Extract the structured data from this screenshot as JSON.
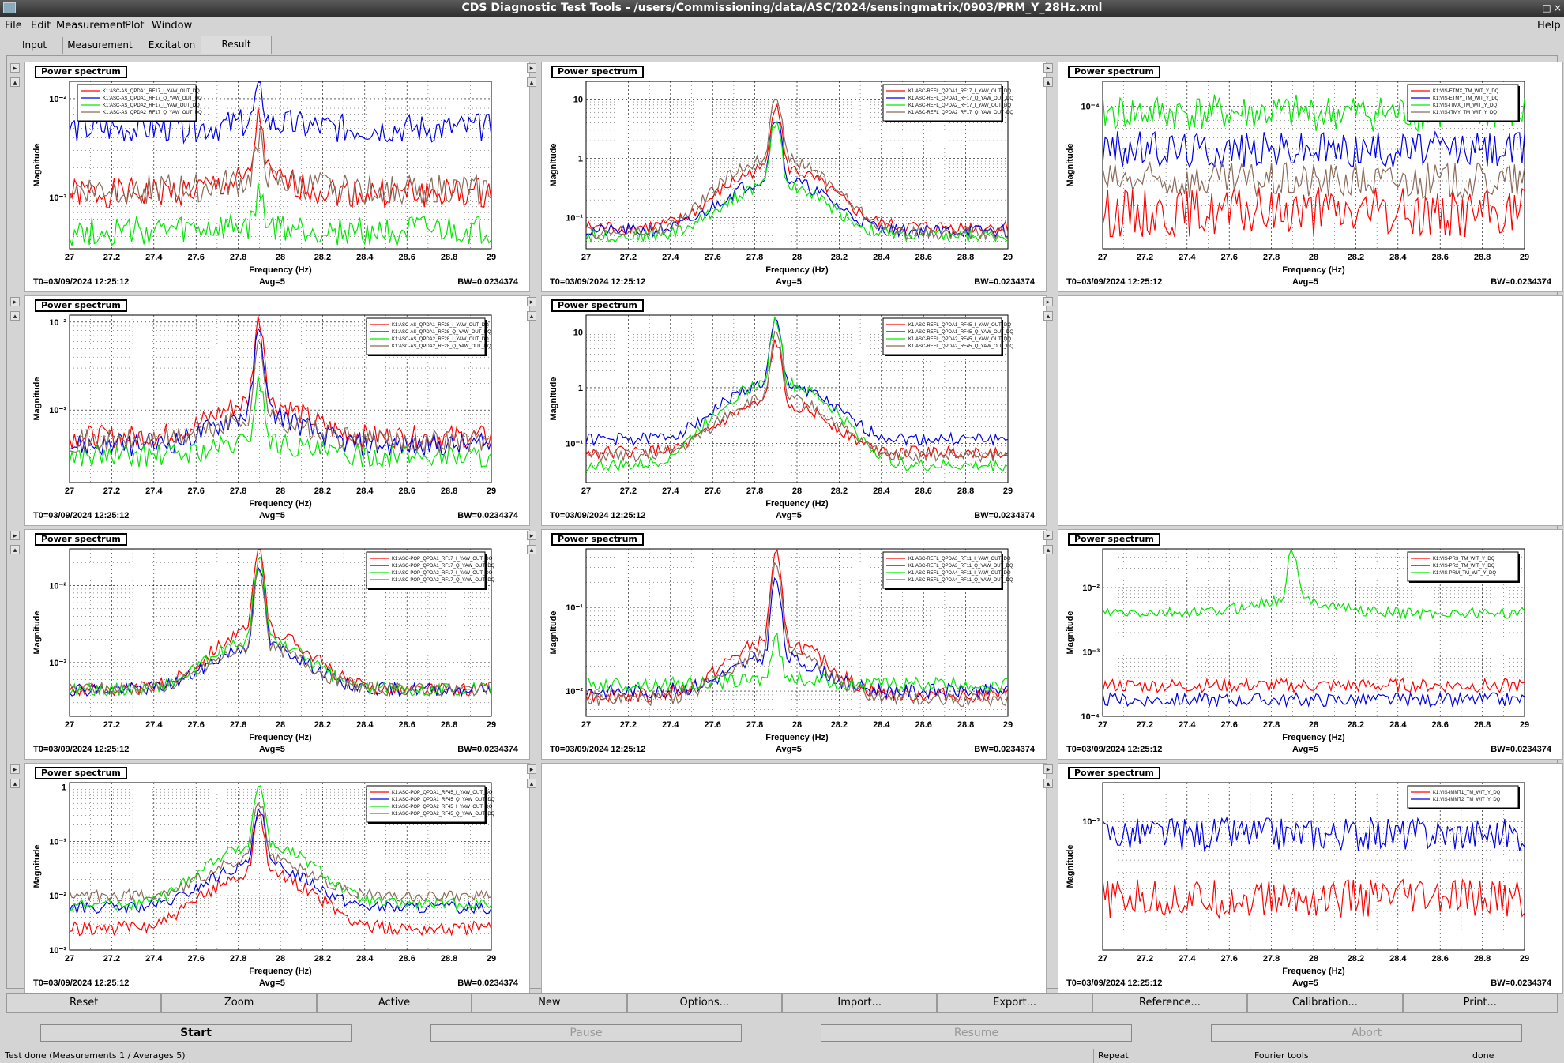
{
  "window": {
    "title": "CDS Diagnostic Test Tools - /users/Commissioning/data/ASC/2024/sensingmatrix/0903/PRM_Y_28Hz.xml"
  },
  "menu": {
    "file": "File",
    "edit": "Edit",
    "measurement": "Measurement",
    "plot": "Plot",
    "window": "Window",
    "help": "Help"
  },
  "tabs": [
    {
      "label": "Input"
    },
    {
      "label": "Measurement"
    },
    {
      "label": "Excitation"
    },
    {
      "label": "Result",
      "active": true
    }
  ],
  "common": {
    "panel_label": "Power spectrum",
    "xlabel": "Frequency (Hz)",
    "ylabel": "Magnitude",
    "t0": "T0=03/09/2024 12:25:12",
    "avg": "Avg=5",
    "bw": "BW=0.0234374",
    "xticks": [
      "27",
      "27.2",
      "27.4",
      "27.6",
      "27.8",
      "28",
      "28.2",
      "28.4",
      "28.6",
      "28.8",
      "29"
    ],
    "xlim": [
      27,
      29
    ]
  },
  "colors": {
    "red": "#ff0000",
    "blue": "#0000e6",
    "green": "#00e600",
    "brown": "#8b6b5a",
    "panel_bg": "#ffffff",
    "window_bg": "#d4d4d4"
  },
  "chart_data": [
    {
      "type": "line",
      "panel": "row1-col1",
      "scale": "log",
      "ylim": [
        0.0003,
        0.015
      ],
      "yticks": [
        {
          "value": 0.01,
          "label": "10⁻²"
        },
        {
          "value": 0.001,
          "label": "10⁻³"
        }
      ],
      "legend_position": "top-left",
      "series": [
        {
          "name": "K1:ASC-AS_QPDA1_RF17_I_YAW_OUT_DQ",
          "color": "red",
          "base": 0.0011,
          "peak": 0.006,
          "noise": 0.35
        },
        {
          "name": "K1:ASC-AS_QPDA1_RF17_Q_YAW_OUT_DQ",
          "color": "blue",
          "base": 0.005,
          "peak": 0.012,
          "noise": 0.35
        },
        {
          "name": "K1:ASC-AS_QPDA2_RF17_I_YAW_OUT_DQ",
          "color": "green",
          "base": 0.00045,
          "peak": 0.001,
          "noise": 0.35
        },
        {
          "name": "K1:ASC-AS_QPDA2_RF17_Q_YAW_OUT_DQ",
          "color": "brown",
          "base": 0.0012,
          "peak": 0.004,
          "noise": 0.35
        }
      ]
    },
    {
      "type": "line",
      "panel": "row1-col2",
      "scale": "log",
      "ylim": [
        0.03,
        20
      ],
      "yticks": [
        {
          "value": 10,
          "label": "10"
        },
        {
          "value": 1,
          "label": "1"
        },
        {
          "value": 0.1,
          "label": "10⁻¹"
        }
      ],
      "legend_position": "top-right",
      "series": [
        {
          "name": "K1:ASC-REFL_QPDA1_RF17_I_YAW_OUT_DQ",
          "color": "red",
          "base": 0.07,
          "peak": 8,
          "noise": 0.25
        },
        {
          "name": "K1:ASC-REFL_QPDA1_RF17_Q_YAW_OUT_DQ",
          "color": "blue",
          "base": 0.06,
          "peak": 5,
          "noise": 0.25
        },
        {
          "name": "K1:ASC-REFL_QPDA2_RF17_I_YAW_OUT_DQ",
          "color": "green",
          "base": 0.05,
          "peak": 4,
          "noise": 0.25
        },
        {
          "name": "K1:ASC-REFL_QPDA2_RF17_Q_YAW_OUT_DQ",
          "color": "brown",
          "base": 0.055,
          "peak": 12,
          "noise": 0.25
        }
      ]
    },
    {
      "type": "line",
      "panel": "row1-col3",
      "scale": "log",
      "ylim": [
        1e-05,
        0.00015
      ],
      "yticks": [
        {
          "value": 0.0001,
          "label": "10⁻⁴"
        }
      ],
      "legend_position": "top-right",
      "series": [
        {
          "name": "K1:VIS-ETMX_TM_WIT_Y_DQ",
          "color": "red",
          "base": 1.8e-05,
          "peak": 2e-05,
          "noise": 0.4
        },
        {
          "name": "K1:VIS-ETMY_TM_WIT_Y_DQ",
          "color": "blue",
          "base": 5e-05,
          "peak": 5e-05,
          "noise": 0.3
        },
        {
          "name": "K1:VIS-ITMX_TM_WIT_Y_DQ",
          "color": "green",
          "base": 9e-05,
          "peak": 9e-05,
          "noise": 0.3
        },
        {
          "name": "K1:VIS-ITMY_TM_WIT_Y_DQ",
          "color": "brown",
          "base": 3e-05,
          "peak": 3e-05,
          "noise": 0.3
        }
      ]
    },
    {
      "type": "line",
      "panel": "row2-col1",
      "scale": "log",
      "ylim": [
        0.00015,
        0.012
      ],
      "yticks": [
        {
          "value": 0.01,
          "label": "10⁻²"
        },
        {
          "value": 0.001,
          "label": "10⁻³"
        }
      ],
      "legend_position": "top-right",
      "series": [
        {
          "name": "K1:ASC-AS_QPDA1_RF28_I_YAW_OUT_DQ",
          "color": "red",
          "base": 0.0005,
          "peak": 0.01,
          "noise": 0.3
        },
        {
          "name": "K1:ASC-AS_QPDA1_RF28_Q_YAW_OUT_DQ",
          "color": "blue",
          "base": 0.0004,
          "peak": 0.007,
          "noise": 0.3
        },
        {
          "name": "K1:ASC-AS_QPDA2_RF28_I_YAW_OUT_DQ",
          "color": "green",
          "base": 0.0003,
          "peak": 0.002,
          "noise": 0.3
        },
        {
          "name": "K1:ASC-AS_QPDA2_RF28_Q_YAW_OUT_DQ",
          "color": "brown",
          "base": 0.00045,
          "peak": 0.005,
          "noise": 0.3
        }
      ]
    },
    {
      "type": "line",
      "panel": "row2-col2",
      "scale": "log",
      "ylim": [
        0.02,
        20
      ],
      "yticks": [
        {
          "value": 10,
          "label": "10"
        },
        {
          "value": 1,
          "label": "1"
        },
        {
          "value": 0.1,
          "label": "10⁻¹"
        }
      ],
      "legend_position": "top-right",
      "series": [
        {
          "name": "K1:ASC-REFL_QPDA1_RF45_I_YAW_OUT_DQ",
          "color": "red",
          "base": 0.07,
          "peak": 6,
          "noise": 0.25
        },
        {
          "name": "K1:ASC-REFL_QPDA1_RF45_Q_YAW_OUT_DQ",
          "color": "blue",
          "base": 0.12,
          "peak": 14,
          "noise": 0.25
        },
        {
          "name": "K1:ASC-REFL_QPDA2_RF45_I_YAW_OUT_DQ",
          "color": "green",
          "base": 0.04,
          "peak": 15,
          "noise": 0.25
        },
        {
          "name": "K1:ASC-REFL_QPDA2_RF45_Q_YAW_OUT_DQ",
          "color": "brown",
          "base": 0.06,
          "peak": 8,
          "noise": 0.25
        }
      ]
    },
    {
      "type": "line",
      "panel": "row3-col1",
      "scale": "log",
      "ylim": [
        0.0002,
        0.03
      ],
      "yticks": [
        {
          "value": 0.01,
          "label": "10⁻²"
        },
        {
          "value": 0.001,
          "label": "10⁻³"
        }
      ],
      "legend_position": "top-right",
      "series": [
        {
          "name": "K1:ASC-POP_QPDA1_RF17_I_YAW_OUT_DQ",
          "color": "red",
          "base": 0.00045,
          "peak": 0.028,
          "noise": 0.2
        },
        {
          "name": "K1:ASC-POP_QPDA1_RF17_Q_YAW_OUT_DQ",
          "color": "blue",
          "base": 0.00045,
          "peak": 0.016,
          "noise": 0.2
        },
        {
          "name": "K1:ASC-POP_QPDA2_RF17_I_YAW_OUT_DQ",
          "color": "green",
          "base": 0.00045,
          "peak": 0.02,
          "noise": 0.2
        },
        {
          "name": "K1:ASC-POP_QPDA2_RF17_Q_YAW_OUT_DQ",
          "color": "brown",
          "base": 0.00045,
          "peak": 0.015,
          "noise": 0.2
        }
      ]
    },
    {
      "type": "line",
      "panel": "row3-col2",
      "scale": "log",
      "ylim": [
        0.005,
        0.5
      ],
      "yticks": [
        {
          "value": 0.1,
          "label": "10⁻¹"
        },
        {
          "value": 0.01,
          "label": "10⁻²"
        }
      ],
      "legend_position": "top-right",
      "series": [
        {
          "name": "K1:ASC-REFL_QPDA3_RF11_I_YAW_OUT_DQ",
          "color": "red",
          "base": 0.009,
          "peak": 0.4,
          "noise": 0.2
        },
        {
          "name": "K1:ASC-REFL_QPDA3_RF11_Q_YAW_OUT_DQ",
          "color": "blue",
          "base": 0.01,
          "peak": 0.2,
          "noise": 0.2
        },
        {
          "name": "K1:ASC-REFL_QPDA4_RF11_I_YAW_OUT_DQ",
          "color": "green",
          "base": 0.012,
          "peak": 0.04,
          "noise": 0.2
        },
        {
          "name": "K1:ASC-REFL_QPDA4_RF11_Q_YAW_OUT_DQ",
          "color": "brown",
          "base": 0.008,
          "peak": 0.3,
          "noise": 0.2
        }
      ]
    },
    {
      "type": "line",
      "panel": "row3-col3",
      "scale": "log",
      "ylim": [
        0.0001,
        0.04
      ],
      "yticks": [
        {
          "value": 0.01,
          "label": "10⁻²"
        },
        {
          "value": 0.001,
          "label": "10⁻³"
        },
        {
          "value": 0.0001,
          "label": "10⁻⁴"
        }
      ],
      "legend_position": "top-right",
      "series": [
        {
          "name": "K1:VIS-PR3_TM_WIT_Y_DQ",
          "color": "red",
          "base": 0.0003,
          "peak": 0.0003,
          "noise": 0.25
        },
        {
          "name": "K1:VIS-PR2_TM_WIT_Y_DQ",
          "color": "blue",
          "base": 0.00018,
          "peak": 0.00018,
          "noise": 0.25
        },
        {
          "name": "K1:VIS-PRM_TM_WIT_Y_DQ",
          "color": "green",
          "base": 0.004,
          "peak": 0.035,
          "noise": 0.2
        }
      ]
    },
    {
      "type": "line",
      "panel": "row4-col1",
      "scale": "log",
      "ylim": [
        0.001,
        1.2
      ],
      "yticks": [
        {
          "value": 1,
          "label": "1"
        },
        {
          "value": 0.1,
          "label": "10⁻¹"
        },
        {
          "value": 0.01,
          "label": "10⁻²"
        },
        {
          "value": 0.001,
          "label": "10⁻³"
        }
      ],
      "legend_position": "top-right",
      "series": [
        {
          "name": "K1:ASC-POP_QPDA1_RF45_I_YAW_OUT_DQ",
          "color": "red",
          "base": 0.0025,
          "peak": 0.3,
          "noise": 0.3
        },
        {
          "name": "K1:ASC-POP_QPDA1_RF45_Q_YAW_OUT_DQ",
          "color": "blue",
          "base": 0.006,
          "peak": 0.4,
          "noise": 0.25
        },
        {
          "name": "K1:ASC-POP_QPDA2_RF45_I_YAW_OUT_DQ",
          "color": "green",
          "base": 0.007,
          "peak": 1.0,
          "noise": 0.25
        },
        {
          "name": "K1:ASC-POP_QPDA2_RF45_Q_YAW_OUT_DQ",
          "color": "brown",
          "base": 0.01,
          "peak": 0.5,
          "noise": 0.25
        }
      ]
    },
    {
      "type": "line",
      "panel": "row4-col3",
      "scale": "log",
      "ylim": [
        0.0001,
        0.002
      ],
      "yticks": [
        {
          "value": 0.001,
          "label": "10⁻³"
        }
      ],
      "legend_position": "top-right",
      "series": [
        {
          "name": "K1:VIS-IMMT1_TM_WIT_Y_DQ",
          "color": "red",
          "base": 0.00025,
          "peak": 0.00025,
          "noise": 0.35
        },
        {
          "name": "K1:VIS-IMMT2_TM_WIT_Y_DQ",
          "color": "blue",
          "base": 0.0008,
          "peak": 0.0008,
          "noise": 0.3
        }
      ]
    }
  ],
  "buttons": [
    "Reset",
    "Zoom",
    "Active",
    "New",
    "Options...",
    "Import...",
    "Export...",
    "Reference...",
    "Calibration...",
    "Print..."
  ],
  "controls": [
    {
      "label": "Start",
      "enabled": true
    },
    {
      "label": "Pause",
      "enabled": false
    },
    {
      "label": "Resume",
      "enabled": false
    },
    {
      "label": "Abort",
      "enabled": false
    }
  ],
  "status": {
    "message": "Test done (Measurements 1 / Averages 5)",
    "repeat": "Repeat",
    "fourier": "Fourier tools",
    "state": "done"
  }
}
